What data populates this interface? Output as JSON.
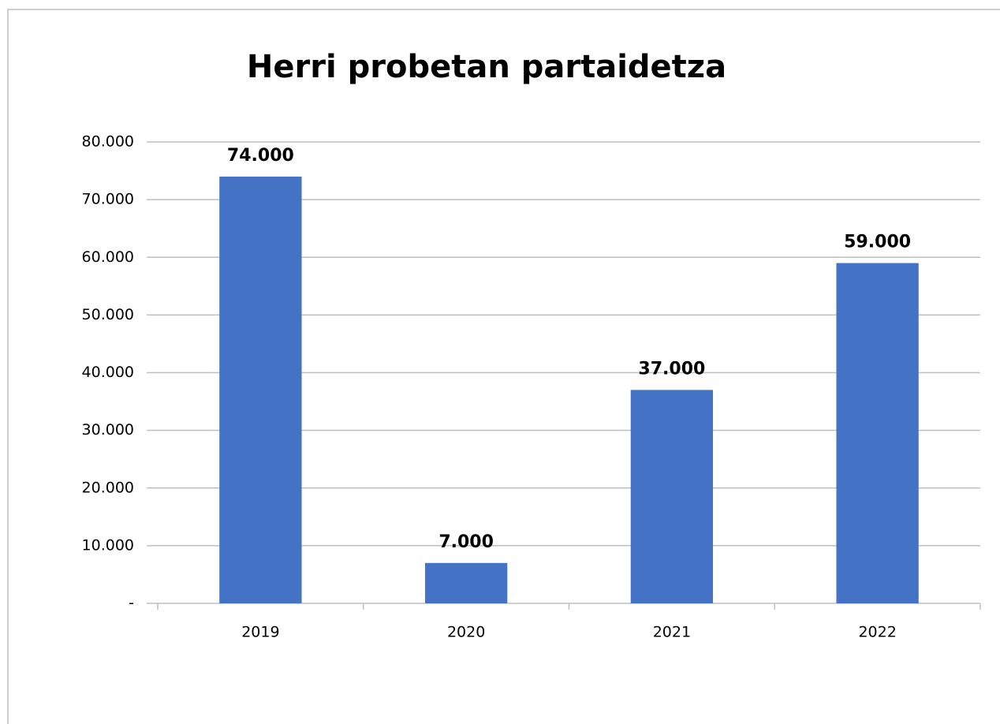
{
  "chart_data": {
    "type": "bar",
    "title": "Herri probetan partaidetza",
    "categories": [
      "2019",
      "2020",
      "2021",
      "2022"
    ],
    "values": [
      74000,
      7000,
      37000,
      59000
    ],
    "value_labels": [
      "74.000",
      "7.000",
      "37.000",
      "59.000"
    ],
    "color": "#4472c4",
    "ylim": [
      0,
      80000
    ],
    "yticks": [
      {
        "value": 0,
        "label": "-"
      },
      {
        "value": 10000,
        "label": "10.000"
      },
      {
        "value": 20000,
        "label": "20.000"
      },
      {
        "value": 30000,
        "label": "30.000"
      },
      {
        "value": 40000,
        "label": "40.000"
      },
      {
        "value": 50000,
        "label": "50.000"
      },
      {
        "value": 60000,
        "label": "60.000"
      },
      {
        "value": 70000,
        "label": "70.000"
      },
      {
        "value": 80000,
        "label": "80.000"
      }
    ],
    "grid": true
  }
}
